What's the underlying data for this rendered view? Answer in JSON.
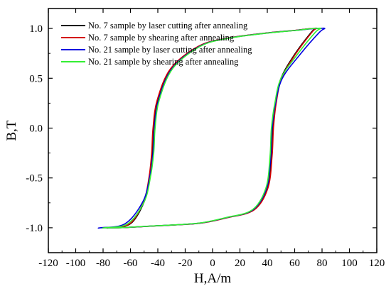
{
  "chart_data": {
    "type": "line",
    "title": "",
    "xlabel": "H,A/m",
    "ylabel": "B,T",
    "xlim": [
      -120,
      120
    ],
    "ylim": [
      -1.25,
      1.2
    ],
    "xticks": [
      -120,
      -100,
      -80,
      -60,
      -40,
      -20,
      0,
      20,
      40,
      60,
      80,
      100,
      120
    ],
    "yticks": [
      -1.0,
      -0.5,
      0.0,
      0.5,
      1.0
    ],
    "xtick_labels": [
      "-120",
      "-100",
      "-80",
      "-60",
      "-40",
      "-20",
      "0",
      "20",
      "40",
      "60",
      "80",
      "100",
      "120"
    ],
    "ytick_labels": [
      "-1.0",
      "-0.5",
      "0.0",
      "0.5",
      "1.0"
    ],
    "grid": false,
    "legend_position": "top-left",
    "series": [
      {
        "name": "No. 7 sample by laser cutting after annealing",
        "color": "#000000",
        "x": [
          -75.5,
          -60,
          -50,
          -46,
          -44,
          -43,
          -40,
          -30,
          -10,
          10,
          40,
          60,
          69,
          74,
          75.5,
          72,
          60,
          50,
          46,
          44,
          43,
          40,
          30,
          10,
          -10,
          -40,
          -60,
          -69,
          -74,
          -75.5
        ],
        "y": [
          -1.0,
          -0.96,
          -0.74,
          -0.5,
          -0.25,
          0.0,
          0.28,
          0.6,
          0.82,
          0.9,
          0.955,
          0.98,
          0.995,
          1.0,
          1.0,
          0.96,
          0.74,
          0.5,
          0.25,
          0.0,
          -0.28,
          -0.6,
          -0.82,
          -0.9,
          -0.955,
          -0.98,
          -0.995,
          -1.0,
          -1.0,
          -1.0
        ]
      },
      {
        "name": "No. 7 sample by shearing  after annealing",
        "color": "#d40000",
        "x": [
          -76,
          -60.5,
          -50.5,
          -46.5,
          -44.5,
          -43.5,
          -40.5,
          -30.5,
          -10.5,
          9.5,
          39.5,
          59.5,
          69.5,
          74.5,
          76,
          72.5,
          60.5,
          50.5,
          46.5,
          44.5,
          43.5,
          40.5,
          30.5,
          10.5,
          -9.5,
          -39.5,
          -59.5,
          -69.5,
          -74.5,
          -76
        ],
        "y": [
          -1.0,
          -0.96,
          -0.74,
          -0.5,
          -0.25,
          0.0,
          0.28,
          0.6,
          0.82,
          0.9,
          0.955,
          0.98,
          0.995,
          1.0,
          1.0,
          0.96,
          0.74,
          0.5,
          0.25,
          0.0,
          -0.28,
          -0.6,
          -0.82,
          -0.9,
          -0.955,
          -0.98,
          -0.995,
          -1.0,
          -1.0,
          -1.0
        ]
      },
      {
        "name": "No. 21 sample by laser cutting after annealing",
        "color": "#0000e0",
        "x": [
          -82,
          -64,
          -51,
          -46,
          -43.5,
          -42.5,
          -39.5,
          -29.5,
          -9.5,
          10.5,
          40.5,
          60.5,
          71,
          78,
          82,
          78,
          64,
          51,
          46,
          43.5,
          42.5,
          39.5,
          29.5,
          9.5,
          -10.5,
          -40.5,
          -60.5,
          -71,
          -78,
          -82
        ],
        "y": [
          -1.0,
          -0.96,
          -0.74,
          -0.5,
          -0.25,
          0.0,
          0.28,
          0.6,
          0.82,
          0.9,
          0.955,
          0.98,
          0.995,
          1.0,
          1.0,
          0.96,
          0.74,
          0.5,
          0.25,
          0.0,
          -0.28,
          -0.6,
          -0.82,
          -0.9,
          -0.955,
          -0.98,
          -0.995,
          -1.0,
          -1.0,
          -1.0
        ]
      },
      {
        "name": "No. 21 sample by shearing after annealing",
        "color": "#33ee33",
        "x": [
          -79,
          -62,
          -50,
          -45.5,
          -43,
          -42,
          -39,
          -29,
          -9,
          11,
          41,
          61,
          70,
          76,
          79,
          75,
          62,
          50,
          45.5,
          43,
          42,
          39,
          29,
          9,
          -11,
          -41,
          -61,
          -70,
          -76,
          -79
        ],
        "y": [
          -1.0,
          -0.96,
          -0.74,
          -0.5,
          -0.25,
          0.0,
          0.28,
          0.6,
          0.82,
          0.9,
          0.955,
          0.98,
          0.995,
          1.0,
          1.0,
          0.96,
          0.74,
          0.5,
          0.25,
          0.0,
          -0.28,
          -0.6,
          -0.82,
          -0.9,
          -0.955,
          -0.98,
          -0.995,
          -1.0,
          -1.0,
          -1.0
        ]
      }
    ]
  }
}
